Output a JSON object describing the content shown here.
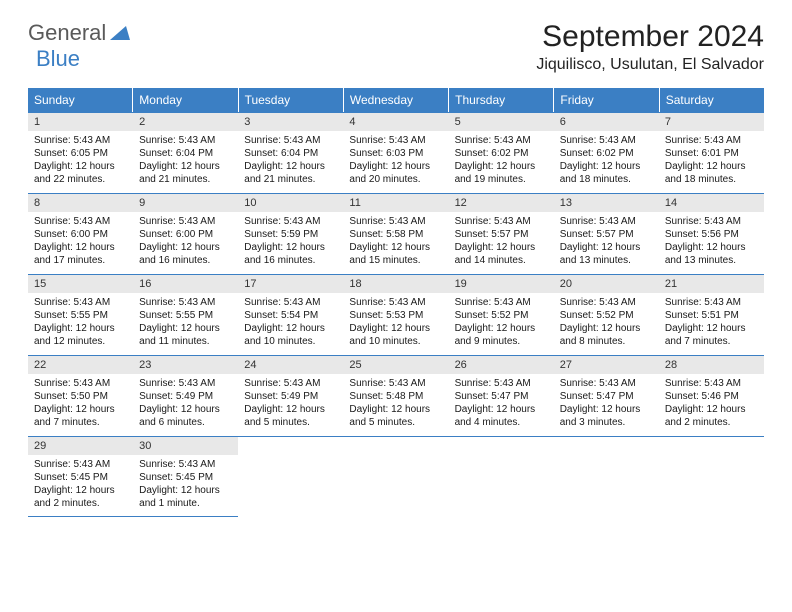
{
  "logo": {
    "part1": "General",
    "part2": "Blue"
  },
  "title": "September 2024",
  "location": "Jiquilisco, Usulutan, El Salvador",
  "colors": {
    "header_bg": "#3b7fc4",
    "header_text": "#ffffff",
    "daynum_bg": "#e8e8e8",
    "border": "#3b7fc4",
    "body_text": "#191919",
    "logo_gray": "#5a5a5a",
    "logo_blue": "#3b7fc4",
    "page_bg": "#ffffff"
  },
  "day_headers": [
    "Sunday",
    "Monday",
    "Tuesday",
    "Wednesday",
    "Thursday",
    "Friday",
    "Saturday"
  ],
  "weeks": [
    [
      {
        "n": "1",
        "sr": "Sunrise: 5:43 AM",
        "ss": "Sunset: 6:05 PM",
        "d1": "Daylight: 12 hours",
        "d2": "and 22 minutes."
      },
      {
        "n": "2",
        "sr": "Sunrise: 5:43 AM",
        "ss": "Sunset: 6:04 PM",
        "d1": "Daylight: 12 hours",
        "d2": "and 21 minutes."
      },
      {
        "n": "3",
        "sr": "Sunrise: 5:43 AM",
        "ss": "Sunset: 6:04 PM",
        "d1": "Daylight: 12 hours",
        "d2": "and 21 minutes."
      },
      {
        "n": "4",
        "sr": "Sunrise: 5:43 AM",
        "ss": "Sunset: 6:03 PM",
        "d1": "Daylight: 12 hours",
        "d2": "and 20 minutes."
      },
      {
        "n": "5",
        "sr": "Sunrise: 5:43 AM",
        "ss": "Sunset: 6:02 PM",
        "d1": "Daylight: 12 hours",
        "d2": "and 19 minutes."
      },
      {
        "n": "6",
        "sr": "Sunrise: 5:43 AM",
        "ss": "Sunset: 6:02 PM",
        "d1": "Daylight: 12 hours",
        "d2": "and 18 minutes."
      },
      {
        "n": "7",
        "sr": "Sunrise: 5:43 AM",
        "ss": "Sunset: 6:01 PM",
        "d1": "Daylight: 12 hours",
        "d2": "and 18 minutes."
      }
    ],
    [
      {
        "n": "8",
        "sr": "Sunrise: 5:43 AM",
        "ss": "Sunset: 6:00 PM",
        "d1": "Daylight: 12 hours",
        "d2": "and 17 minutes."
      },
      {
        "n": "9",
        "sr": "Sunrise: 5:43 AM",
        "ss": "Sunset: 6:00 PM",
        "d1": "Daylight: 12 hours",
        "d2": "and 16 minutes."
      },
      {
        "n": "10",
        "sr": "Sunrise: 5:43 AM",
        "ss": "Sunset: 5:59 PM",
        "d1": "Daylight: 12 hours",
        "d2": "and 16 minutes."
      },
      {
        "n": "11",
        "sr": "Sunrise: 5:43 AM",
        "ss": "Sunset: 5:58 PM",
        "d1": "Daylight: 12 hours",
        "d2": "and 15 minutes."
      },
      {
        "n": "12",
        "sr": "Sunrise: 5:43 AM",
        "ss": "Sunset: 5:57 PM",
        "d1": "Daylight: 12 hours",
        "d2": "and 14 minutes."
      },
      {
        "n": "13",
        "sr": "Sunrise: 5:43 AM",
        "ss": "Sunset: 5:57 PM",
        "d1": "Daylight: 12 hours",
        "d2": "and 13 minutes."
      },
      {
        "n": "14",
        "sr": "Sunrise: 5:43 AM",
        "ss": "Sunset: 5:56 PM",
        "d1": "Daylight: 12 hours",
        "d2": "and 13 minutes."
      }
    ],
    [
      {
        "n": "15",
        "sr": "Sunrise: 5:43 AM",
        "ss": "Sunset: 5:55 PM",
        "d1": "Daylight: 12 hours",
        "d2": "and 12 minutes."
      },
      {
        "n": "16",
        "sr": "Sunrise: 5:43 AM",
        "ss": "Sunset: 5:55 PM",
        "d1": "Daylight: 12 hours",
        "d2": "and 11 minutes."
      },
      {
        "n": "17",
        "sr": "Sunrise: 5:43 AM",
        "ss": "Sunset: 5:54 PM",
        "d1": "Daylight: 12 hours",
        "d2": "and 10 minutes."
      },
      {
        "n": "18",
        "sr": "Sunrise: 5:43 AM",
        "ss": "Sunset: 5:53 PM",
        "d1": "Daylight: 12 hours",
        "d2": "and 10 minutes."
      },
      {
        "n": "19",
        "sr": "Sunrise: 5:43 AM",
        "ss": "Sunset: 5:52 PM",
        "d1": "Daylight: 12 hours",
        "d2": "and 9 minutes."
      },
      {
        "n": "20",
        "sr": "Sunrise: 5:43 AM",
        "ss": "Sunset: 5:52 PM",
        "d1": "Daylight: 12 hours",
        "d2": "and 8 minutes."
      },
      {
        "n": "21",
        "sr": "Sunrise: 5:43 AM",
        "ss": "Sunset: 5:51 PM",
        "d1": "Daylight: 12 hours",
        "d2": "and 7 minutes."
      }
    ],
    [
      {
        "n": "22",
        "sr": "Sunrise: 5:43 AM",
        "ss": "Sunset: 5:50 PM",
        "d1": "Daylight: 12 hours",
        "d2": "and 7 minutes."
      },
      {
        "n": "23",
        "sr": "Sunrise: 5:43 AM",
        "ss": "Sunset: 5:49 PM",
        "d1": "Daylight: 12 hours",
        "d2": "and 6 minutes."
      },
      {
        "n": "24",
        "sr": "Sunrise: 5:43 AM",
        "ss": "Sunset: 5:49 PM",
        "d1": "Daylight: 12 hours",
        "d2": "and 5 minutes."
      },
      {
        "n": "25",
        "sr": "Sunrise: 5:43 AM",
        "ss": "Sunset: 5:48 PM",
        "d1": "Daylight: 12 hours",
        "d2": "and 5 minutes."
      },
      {
        "n": "26",
        "sr": "Sunrise: 5:43 AM",
        "ss": "Sunset: 5:47 PM",
        "d1": "Daylight: 12 hours",
        "d2": "and 4 minutes."
      },
      {
        "n": "27",
        "sr": "Sunrise: 5:43 AM",
        "ss": "Sunset: 5:47 PM",
        "d1": "Daylight: 12 hours",
        "d2": "and 3 minutes."
      },
      {
        "n": "28",
        "sr": "Sunrise: 5:43 AM",
        "ss": "Sunset: 5:46 PM",
        "d1": "Daylight: 12 hours",
        "d2": "and 2 minutes."
      }
    ],
    [
      {
        "n": "29",
        "sr": "Sunrise: 5:43 AM",
        "ss": "Sunset: 5:45 PM",
        "d1": "Daylight: 12 hours",
        "d2": "and 2 minutes."
      },
      {
        "n": "30",
        "sr": "Sunrise: 5:43 AM",
        "ss": "Sunset: 5:45 PM",
        "d1": "Daylight: 12 hours",
        "d2": "and 1 minute."
      },
      null,
      null,
      null,
      null,
      null
    ]
  ]
}
